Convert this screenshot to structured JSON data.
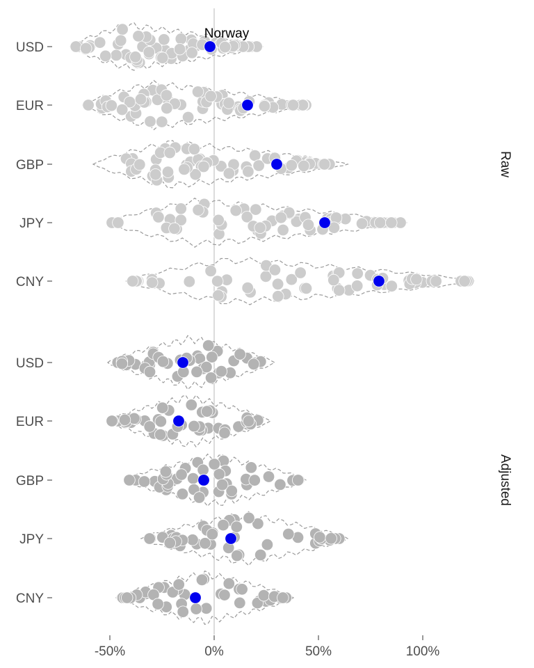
{
  "chart_data": {
    "type": "scatter",
    "subtype": "beeswarm-with-violin",
    "x_axis": {
      "ticks": [
        -0.5,
        0,
        0.5,
        1
      ],
      "tick_labels": [
        "-50%",
        "0%",
        "50%",
        "100%"
      ],
      "range": [
        -0.78,
        1.3
      ]
    },
    "zero_line": true,
    "annotation": {
      "text": "Norway",
      "x": -0.02,
      "panel": "Raw",
      "category": "USD"
    },
    "colors": {
      "raw_points": "#cccccc",
      "adjusted_points": "#b3b3b3",
      "highlight": "#0000ee",
      "violin_outline": "#999999",
      "zero_line": "#c8c8c8"
    },
    "panels": [
      {
        "name": "Raw",
        "categories": [
          {
            "name": "USD",
            "highlight": -0.02,
            "min": -0.67,
            "max": 0.21
          },
          {
            "name": "EUR",
            "highlight": 0.16,
            "min": -0.61,
            "max": 0.44
          },
          {
            "name": "GBP",
            "highlight": 0.3,
            "min": -0.56,
            "max": 0.62
          },
          {
            "name": "JPY",
            "highlight": 0.53,
            "min": -0.49,
            "max": 0.9
          },
          {
            "name": "CNY",
            "highlight": 0.79,
            "min": -0.4,
            "max": 1.23
          }
        ]
      },
      {
        "name": "Adjusted",
        "categories": [
          {
            "name": "USD",
            "highlight": -0.15,
            "min": -0.49,
            "max": 0.27
          },
          {
            "name": "EUR",
            "highlight": -0.17,
            "min": -0.49,
            "max": 0.25
          },
          {
            "name": "GBP",
            "highlight": -0.05,
            "min": -0.41,
            "max": 0.42
          },
          {
            "name": "JPY",
            "highlight": 0.08,
            "min": -0.33,
            "max": 0.62
          },
          {
            "name": "CNY",
            "highlight": -0.09,
            "min": -0.45,
            "max": 0.36
          }
        ]
      }
    ]
  }
}
